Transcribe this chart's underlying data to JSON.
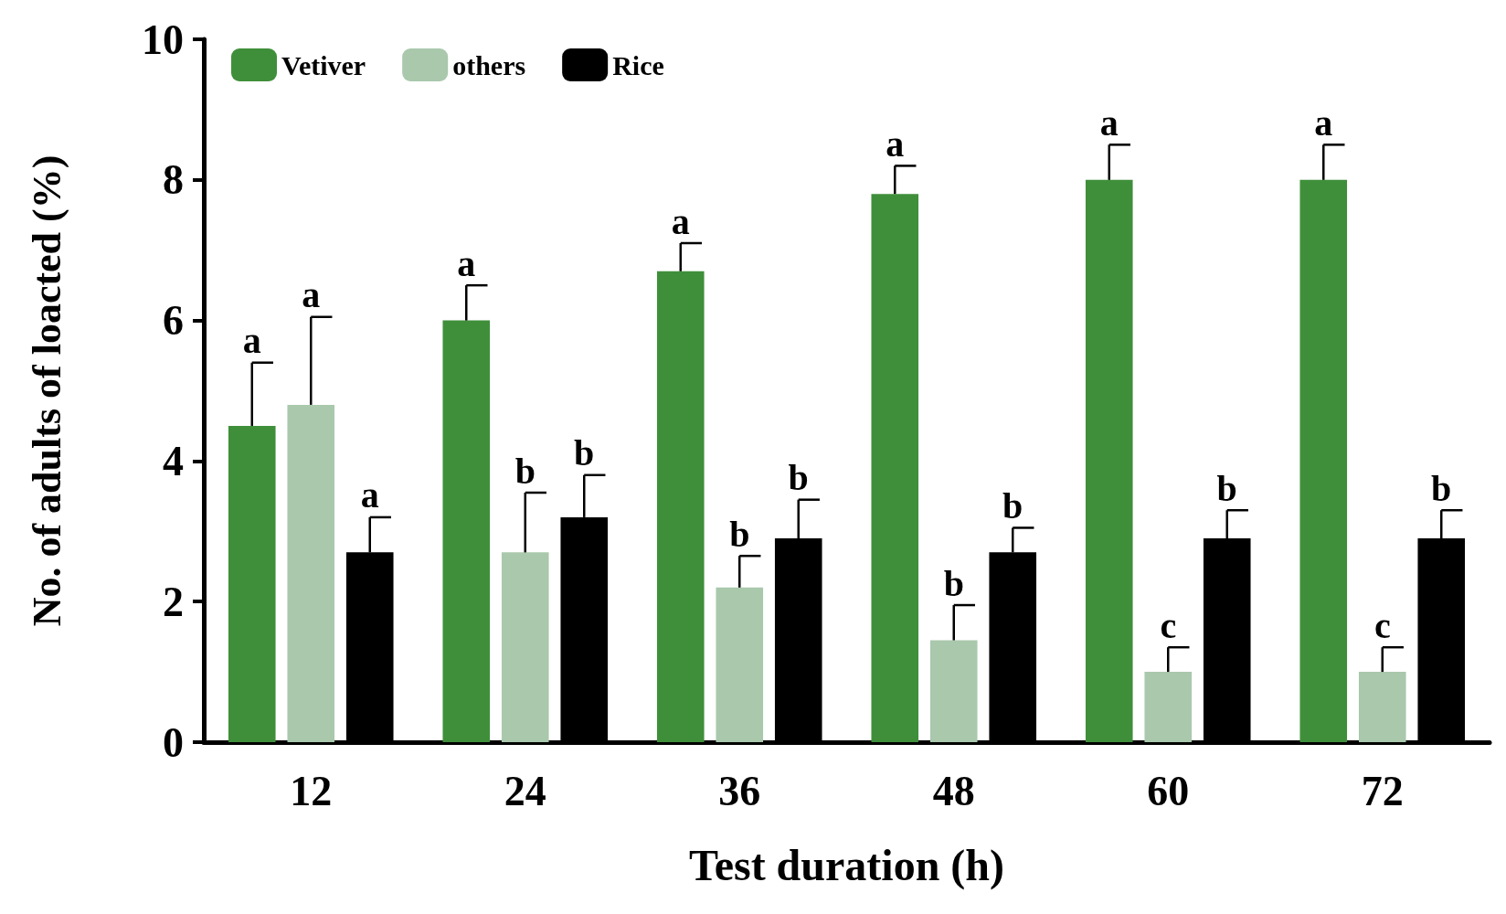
{
  "chart_data": {
    "type": "bar",
    "xlabel": "Test duration (h)",
    "ylabel": "No. of adults of loacted (%)",
    "categories": [
      "12",
      "24",
      "36",
      "48",
      "60",
      "72"
    ],
    "series": [
      {
        "name": "Vetiver",
        "color": "#3f8f3a",
        "values": [
          4.5,
          6.0,
          6.7,
          7.8,
          8.0,
          8.0
        ],
        "errors": [
          [
            4.5,
            5.4
          ],
          [
            6.0,
            6.5
          ],
          [
            6.7,
            7.1
          ],
          [
            7.8,
            8.2
          ],
          [
            8.0,
            8.5
          ],
          [
            8.0,
            8.5
          ]
        ],
        "value_labels": [
          "a",
          "a",
          "a",
          "a",
          "a",
          "a"
        ]
      },
      {
        "name": "others",
        "color": "#a9c8ac",
        "values": [
          4.8,
          2.7,
          2.2,
          1.45,
          1.0,
          1.0
        ],
        "errors": [
          [
            4.8,
            6.05
          ],
          [
            2.7,
            3.55
          ],
          [
            2.2,
            2.65
          ],
          [
            1.45,
            1.95
          ],
          [
            1.0,
            1.35
          ],
          [
            1.0,
            1.35
          ]
        ],
        "value_labels": [
          "a",
          "b",
          "b",
          "b",
          "c",
          "c"
        ]
      },
      {
        "name": "Rice",
        "color": "#000000",
        "values": [
          2.7,
          3.2,
          2.9,
          2.7,
          2.9,
          2.9
        ],
        "errors": [
          [
            2.7,
            3.2
          ],
          [
            3.2,
            3.8
          ],
          [
            2.9,
            3.45
          ],
          [
            2.7,
            3.05
          ],
          [
            2.9,
            3.3
          ],
          [
            2.9,
            3.3
          ]
        ],
        "value_labels": [
          "a",
          "b",
          "b",
          "b",
          "b",
          "b"
        ]
      }
    ],
    "ylim": [
      0,
      10
    ],
    "yticks": [
      0,
      2,
      4,
      6,
      8,
      10
    ],
    "grid": false,
    "legend": "top left"
  }
}
